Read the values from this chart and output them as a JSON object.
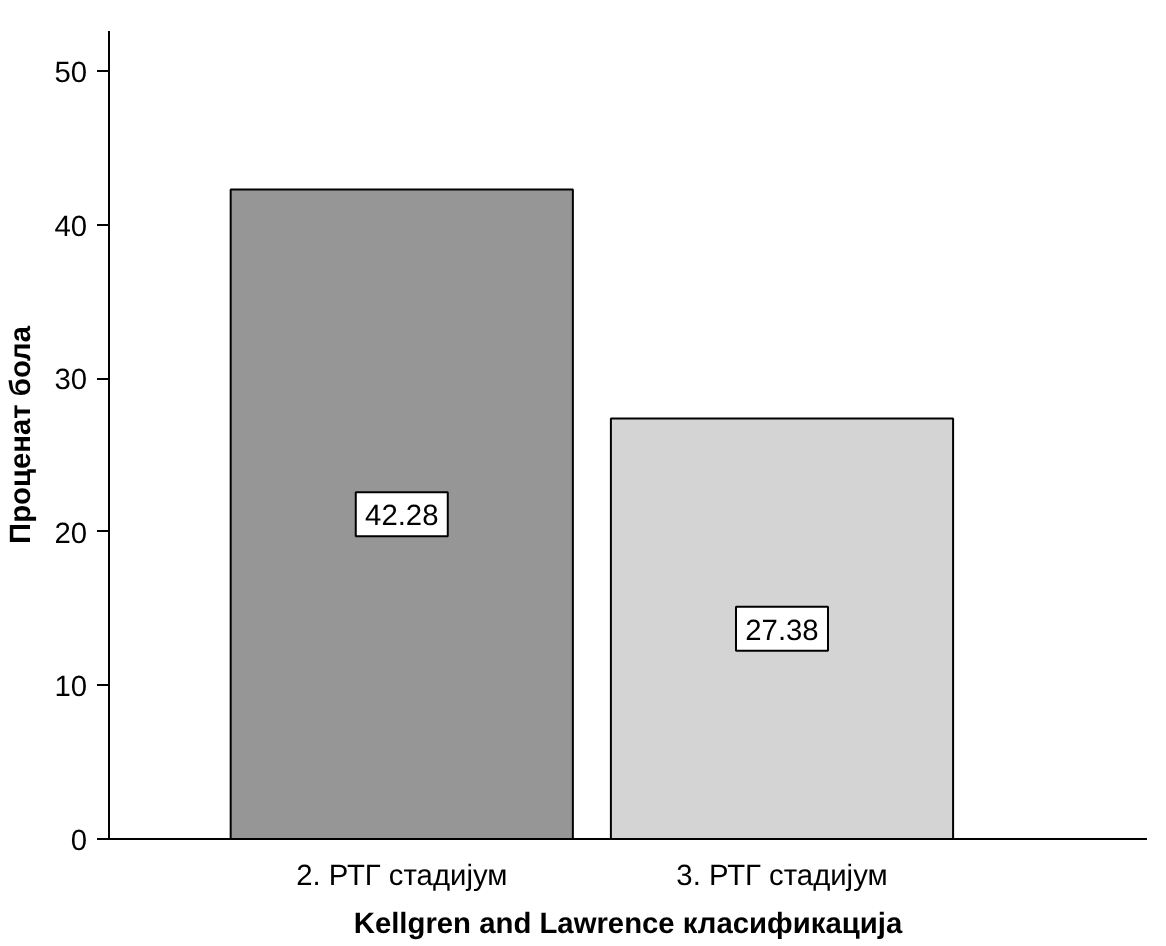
{
  "chart_data": {
    "type": "bar",
    "xlabel": "Kellgren and Lawrence класификација",
    "ylabel": "Проценат бола",
    "categories": [
      "2. РТГ стадијум",
      "3. РТГ стадијум"
    ],
    "values": [
      42.28,
      27.38
    ],
    "colors": [
      "#969696",
      "#d4d4d4"
    ],
    "ylim": [
      0,
      52.6
    ],
    "yticks": [
      0,
      10,
      20,
      30,
      40,
      50
    ],
    "grid": false,
    "data_labels": true
  }
}
